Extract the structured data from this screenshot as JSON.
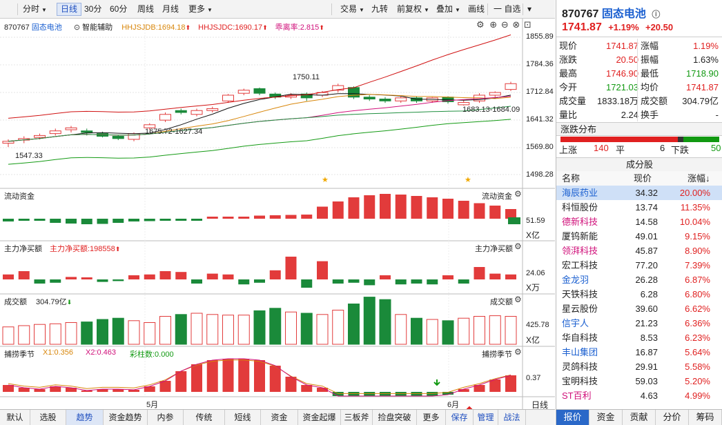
{
  "toolbar": {
    "left": [
      {
        "label": "分时",
        "dd": true
      },
      {
        "label": "日线",
        "active": true
      },
      {
        "label": "30分"
      },
      {
        "label": "60分"
      },
      {
        "label": "周线"
      },
      {
        "label": "月线"
      },
      {
        "label": "更多",
        "dd": true
      }
    ],
    "right": [
      {
        "label": "交易",
        "dd": true
      },
      {
        "label": "九转"
      },
      {
        "label": "前复权",
        "dd": true
      },
      {
        "label": "叠加",
        "dd": true
      },
      {
        "label": "画线"
      },
      {
        "label": "一 自选"
      }
    ]
  },
  "main": {
    "code": "870767",
    "name": "固态电池",
    "assist_label": "智能辅助",
    "ind1": "HHJSJDB:1694.18",
    "ind2": "HHJSJDC:1690.17",
    "ind3": "乖离率:2.815",
    "yticks": [
      "1855.89",
      "1784.36",
      "1712.84",
      "1641.32",
      "1569.80",
      "1498.28"
    ],
    "ann_high": "1750.11",
    "ann_mid": "1675.72-1627.34",
    "ann_right": "1683.13-1684.09",
    "ann_low": "1547.33"
  },
  "panel1": {
    "title": "流动资金",
    "right_title": "流动资金",
    "value": "51.59",
    "unit": "X亿"
  },
  "panel2": {
    "title": "主力净买额",
    "sub": "主力净买额:198558",
    "right_title": "主力净买额",
    "value": "24.06",
    "unit": "X万"
  },
  "panel3": {
    "title": "成交额",
    "sub": "304.79亿",
    "right_title": "成交额",
    "value": "425.78",
    "unit": "X亿"
  },
  "panel4": {
    "title": "捕捞季节",
    "x1": "X1:0.356",
    "x2": "X2:0.463",
    "bars": "彩柱数:0.000",
    "right_title": "捕捞季节",
    "value": "0.37"
  },
  "xaxis": {
    "may": "5月",
    "jun": "6月",
    "period": "日线"
  },
  "bottombar": [
    {
      "label": "默认"
    },
    {
      "label": "选股"
    },
    {
      "label": "趋势",
      "active": true
    },
    {
      "label": "资金趋势"
    },
    {
      "label": "内参"
    },
    {
      "label": "传统"
    },
    {
      "label": "短线"
    },
    {
      "label": "资金"
    },
    {
      "label": "资金起爆"
    },
    {
      "label": "三板斧"
    },
    {
      "label": "捡盘突破"
    },
    {
      "label": "更多"
    },
    {
      "label": "保存"
    },
    {
      "label": "管理"
    },
    {
      "label": "战法"
    }
  ],
  "quote": {
    "code": "870767",
    "name": "固态电池",
    "price": "1741.87",
    "pct": "+1.19%",
    "chg": "+20.50",
    "rows": [
      {
        "l1": "现价",
        "v1": "1741.87",
        "c1": "red",
        "l2": "涨幅",
        "v2": "1.19%",
        "c2": "red"
      },
      {
        "l1": "涨跌",
        "v1": "20.50",
        "c1": "red",
        "l2": "振幅",
        "v2": "1.63%",
        "c2": "dark"
      },
      {
        "l1": "最高",
        "v1": "1746.90",
        "c1": "red",
        "l2": "最低",
        "v2": "1718.90",
        "c2": "green"
      },
      {
        "l1": "今开",
        "v1": "1721.03",
        "c1": "green",
        "l2": "均价",
        "v2": "1741.87",
        "c2": "red"
      },
      {
        "l1": "成交量",
        "v1": "1833.18万",
        "c1": "dark",
        "l2": "成交额",
        "v2": "304.79亿",
        "c2": "dark"
      },
      {
        "l1": "量比",
        "v1": "2.24",
        "c1": "dark",
        "l2": "换手",
        "v2": "-",
        "c2": "dark"
      }
    ],
    "dist_title": "涨跌分布",
    "up_label": "上涨",
    "up": "140",
    "flat_label": "平",
    "flat": "6",
    "down_label": "下跌",
    "down": "50",
    "cons_title": "成分股",
    "col_name": "名称",
    "col_price": "现价",
    "col_pct": "涨幅↓",
    "stocks": [
      {
        "name": "海辰药业",
        "price": "34.32",
        "pct": "20.00%",
        "c": "blue",
        "hl": true
      },
      {
        "name": "科恒股份",
        "price": "13.74",
        "pct": "11.35%",
        "c": "dark"
      },
      {
        "name": "德新科技",
        "price": "14.58",
        "pct": "10.04%",
        "c": "mag"
      },
      {
        "name": "厦钨新能",
        "price": "49.01",
        "pct": "9.15%",
        "c": "dark"
      },
      {
        "name": "领湃科技",
        "price": "45.87",
        "pct": "8.90%",
        "c": "mag"
      },
      {
        "name": "宏工科技",
        "price": "77.20",
        "pct": "7.39%",
        "c": "dark"
      },
      {
        "name": "金龙羽",
        "price": "26.28",
        "pct": "6.87%",
        "c": "blue"
      },
      {
        "name": "天铁科技",
        "price": "6.28",
        "pct": "6.80%",
        "c": "dark"
      },
      {
        "name": "星云股份",
        "price": "39.60",
        "pct": "6.62%",
        "c": "dark"
      },
      {
        "name": "信宇人",
        "price": "21.23",
        "pct": "6.36%",
        "c": "blue"
      },
      {
        "name": "华自科技",
        "price": "8.53",
        "pct": "6.23%",
        "c": "dark"
      },
      {
        "name": "丰山集团",
        "price": "16.87",
        "pct": "5.64%",
        "c": "blue"
      },
      {
        "name": "灵鸽科技",
        "price": "29.91",
        "pct": "5.58%",
        "c": "dark"
      },
      {
        "name": "宝明科技",
        "price": "59.03",
        "pct": "5.20%",
        "c": "dark"
      },
      {
        "name": "ST百利",
        "price": "4.63",
        "pct": "4.99%",
        "c": "mag"
      }
    ],
    "tabs": [
      {
        "label": "报价",
        "active": true
      },
      {
        "label": "资金"
      },
      {
        "label": "贡献"
      },
      {
        "label": "分价"
      },
      {
        "label": "筹码"
      }
    ]
  },
  "chart_data": {
    "type": "candlestick",
    "candles": [
      [
        1580,
        1585,
        1570,
        1590
      ],
      [
        1588,
        1592,
        1580,
        1598
      ],
      [
        1595,
        1600,
        1590,
        1605
      ],
      [
        1605,
        1612,
        1600,
        1618
      ],
      [
        1615,
        1620,
        1608,
        1625
      ],
      [
        1612,
        1608,
        1600,
        1618
      ],
      [
        1605,
        1598,
        1595,
        1610
      ],
      [
        1598,
        1592,
        1588,
        1602
      ],
      [
        1590,
        1605,
        1585,
        1608
      ],
      [
        1620,
        1628,
        1615,
        1632
      ],
      [
        1640,
        1655,
        1635,
        1660
      ],
      [
        1665,
        1660,
        1655,
        1670
      ],
      [
        1655,
        1665,
        1650,
        1670
      ],
      [
        1665,
        1670,
        1660,
        1675
      ],
      [
        1690,
        1705,
        1685,
        1708
      ],
      [
        1710,
        1718,
        1705,
        1722
      ],
      [
        1722,
        1710,
        1705,
        1725
      ],
      [
        1708,
        1700,
        1695,
        1712
      ],
      [
        1700,
        1705,
        1695,
        1710
      ],
      [
        1708,
        1698,
        1690,
        1712
      ],
      [
        1705,
        1712,
        1700,
        1716
      ],
      [
        1718,
        1730,
        1712,
        1735
      ],
      [
        1725,
        1700,
        1695,
        1728
      ],
      [
        1700,
        1695,
        1690,
        1705
      ],
      [
        1695,
        1690,
        1685,
        1700
      ],
      [
        1690,
        1698,
        1685,
        1702
      ],
      [
        1698,
        1690,
        1685,
        1702
      ],
      [
        1690,
        1698,
        1685,
        1700
      ],
      [
        1700,
        1688,
        1683,
        1702
      ],
      [
        1680,
        1686,
        1678,
        1692
      ],
      [
        1690,
        1705,
        1685,
        1710
      ],
      [
        1705,
        1712,
        1700,
        1715
      ],
      [
        1720,
        1735,
        1716,
        1740
      ]
    ],
    "panel1": [
      -8,
      -5,
      -6,
      -12,
      -14,
      -16,
      -15,
      -12,
      -8,
      -7,
      -5,
      -3,
      -1,
      1,
      3,
      6,
      9,
      10,
      11,
      12,
      35,
      50,
      62,
      68,
      72,
      70,
      66,
      62,
      58,
      52,
      45,
      38,
      28
    ],
    "panel2": [
      12,
      20,
      -10,
      -8,
      6,
      5,
      -6,
      -4,
      10,
      12,
      20,
      18,
      -10,
      14,
      12,
      -12,
      -8,
      22,
      55,
      -20,
      44,
      -10,
      -8,
      -14,
      10,
      -12,
      -10,
      -12,
      10,
      -10,
      30,
      14,
      12
    ],
    "panel3": [
      28,
      30,
      32,
      33,
      35,
      36,
      40,
      42,
      38,
      35,
      45,
      48,
      50,
      48,
      47,
      47,
      54,
      58,
      52,
      50,
      48,
      55,
      65,
      76,
      72,
      48,
      42,
      40,
      38,
      42,
      45,
      46,
      45
    ]
  }
}
